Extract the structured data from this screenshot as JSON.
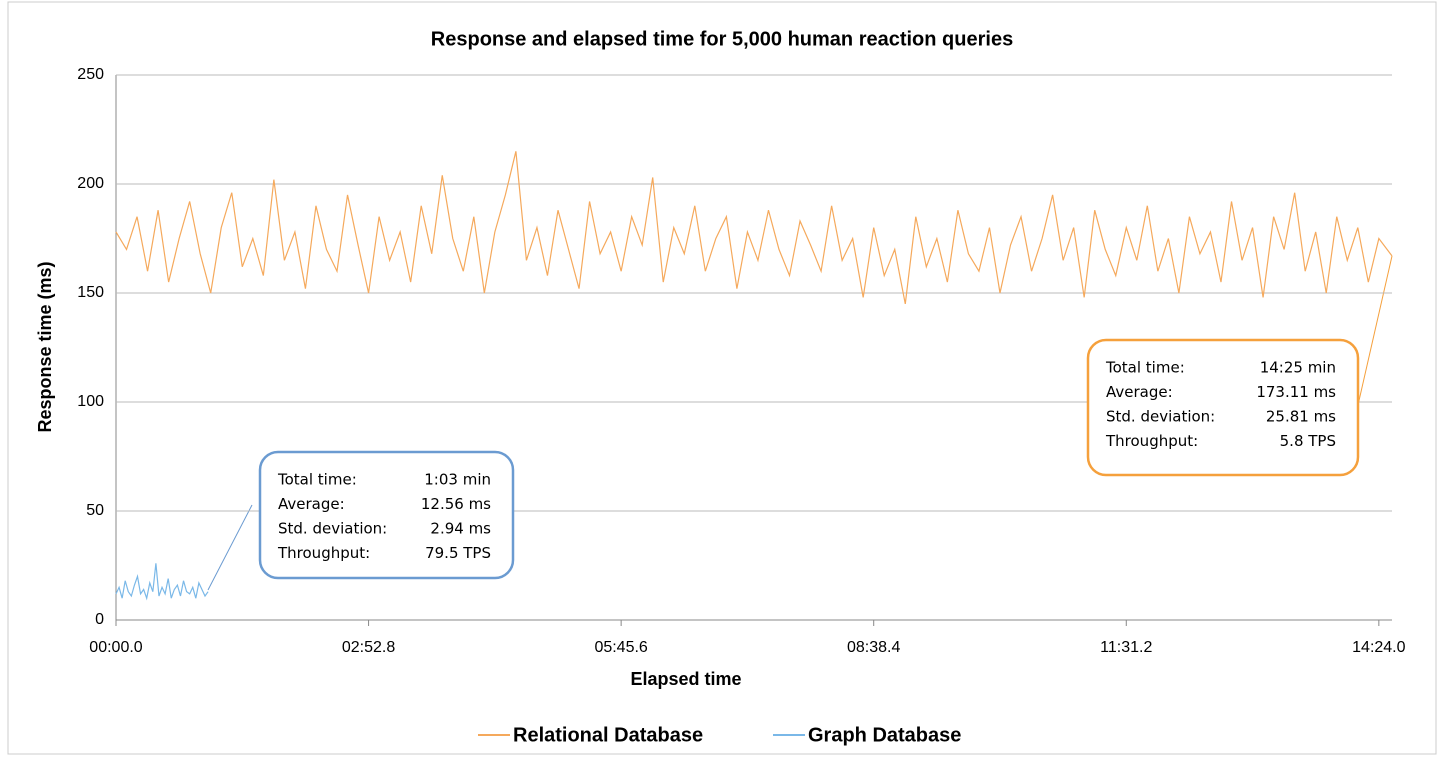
{
  "chart_data": {
    "type": "line",
    "title": "Response and elapsed time for 5,000 human reaction queries",
    "xlabel": "Elapsed time",
    "ylabel": "Response time (ms)",
    "xlim": [
      0,
      873
    ],
    "ylim": [
      0,
      250
    ],
    "xticks": [
      {
        "value": 0,
        "label": "00:00.0"
      },
      {
        "value": 172.8,
        "label": "02:52.8"
      },
      {
        "value": 345.6,
        "label": "05:45.6"
      },
      {
        "value": 518.4,
        "label": "08:38.4"
      },
      {
        "value": 691.2,
        "label": "11:31.2"
      },
      {
        "value": 864,
        "label": "14:24.0"
      }
    ],
    "yticks": [
      0,
      50,
      100,
      150,
      200,
      250
    ],
    "grid": true,
    "legend": "bottom",
    "series": [
      {
        "name": "Relational Database",
        "color": "#f5a95c",
        "x": [
          0,
          7.2,
          14.4,
          21.6,
          28.8,
          36,
          43.2,
          50.4,
          57.6,
          64.8,
          72,
          79.2,
          86.4,
          93.6,
          100.8,
          108,
          115.2,
          122.4,
          129.6,
          136.8,
          144,
          151.2,
          158.4,
          165.6,
          172.8,
          180,
          187.2,
          194.4,
          201.6,
          208.8,
          216,
          223.2,
          230.4,
          237.6,
          244.8,
          252,
          259.2,
          266.4,
          273.6,
          280.8,
          288,
          295.2,
          302.4,
          309.6,
          316.8,
          324,
          331.2,
          338.4,
          345.6,
          352.8,
          360,
          367.2,
          374.4,
          381.6,
          388.8,
          396,
          403.2,
          410.4,
          417.6,
          424.8,
          432,
          439.2,
          446.4,
          453.6,
          460.8,
          468,
          475.2,
          482.4,
          489.6,
          496.8,
          504,
          511.2,
          518.4,
          525.6,
          532.8,
          540,
          547.2,
          554.4,
          561.6,
          568.8,
          576,
          583.2,
          590.4,
          597.6,
          604.8,
          612,
          619.2,
          626.4,
          633.6,
          640.8,
          648,
          655.2,
          662.4,
          669.6,
          676.8,
          684,
          691.2,
          698.4,
          705.6,
          712.8,
          720,
          727.2,
          734.4,
          741.6,
          748.8,
          756,
          763.2,
          770.4,
          777.6,
          784.8,
          792,
          799.2,
          806.4,
          813.6,
          820.8,
          828,
          835.2,
          842.4,
          849.6,
          856.8,
          864,
          873
        ],
        "values": [
          178,
          170,
          185,
          160,
          188,
          155,
          175,
          192,
          168,
          150,
          180,
          196,
          162,
          175,
          158,
          202,
          165,
          178,
          152,
          190,
          170,
          160,
          195,
          172,
          150,
          185,
          165,
          178,
          155,
          190,
          168,
          204,
          175,
          160,
          185,
          150,
          178,
          195,
          215,
          165,
          180,
          158,
          188,
          170,
          152,
          192,
          168,
          178,
          160,
          185,
          172,
          203,
          155,
          180,
          168,
          190,
          160,
          175,
          185,
          152,
          178,
          165,
          188,
          170,
          158,
          183,
          172,
          160,
          190,
          165,
          175,
          148,
          180,
          158,
          170,
          145,
          185,
          162,
          175,
          155,
          188,
          168,
          160,
          180,
          150,
          172,
          185,
          160,
          175,
          195,
          165,
          180,
          148,
          188,
          170,
          158,
          180,
          165,
          190,
          160,
          175,
          150,
          185,
          168,
          178,
          155,
          192,
          165,
          180,
          148,
          185,
          170,
          196,
          160,
          178,
          150,
          185,
          165,
          180,
          155,
          175,
          167
        ]
      },
      {
        "name": "Graph Database",
        "color": "#7ab8e8",
        "x": [
          0,
          2.1,
          4.2,
          6.3,
          8.4,
          10.5,
          12.6,
          14.7,
          16.8,
          18.9,
          21,
          23.1,
          25.2,
          27.3,
          29.4,
          31.5,
          33.6,
          35.7,
          37.8,
          39.9,
          42,
          44.1,
          46.2,
          48.3,
          50.4,
          52.5,
          54.6,
          56.7,
          58.8,
          60.9,
          63
        ],
        "values": [
          12,
          15,
          10,
          18,
          13,
          11,
          16,
          20,
          12,
          14,
          10,
          17,
          13,
          26,
          11,
          15,
          12,
          19,
          10,
          14,
          16,
          11,
          18,
          13,
          12,
          15,
          10,
          17,
          14,
          11,
          13
        ]
      }
    ],
    "annotations": [
      {
        "color": "#6b9bd1",
        "rows": [
          [
            "Total time:",
            "1:03 min"
          ],
          [
            "Average:",
            "12.56 ms"
          ],
          [
            "Std. deviation:",
            "2.94 ms"
          ],
          [
            "Throughput:",
            "79.5 TPS"
          ]
        ]
      },
      {
        "color": "#f5a03c",
        "rows": [
          [
            "Total time:",
            "14:25 min"
          ],
          [
            "Average:",
            "173.11 ms"
          ],
          [
            "Std. deviation:",
            "25.81 ms"
          ],
          [
            "Throughput:",
            "5.8 TPS"
          ]
        ]
      }
    ]
  }
}
